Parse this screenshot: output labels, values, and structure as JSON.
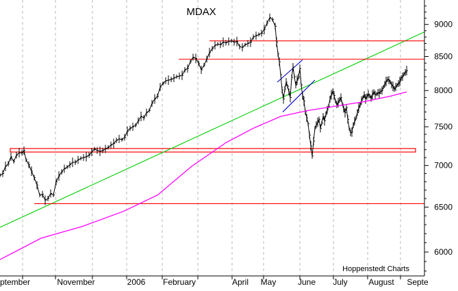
{
  "chart_data": {
    "type": "line",
    "title": "MDAX",
    "credit": "Hoppenstedt Charts",
    "ylim": [
      5750,
      9400
    ],
    "log_scale": true,
    "grid": "vertical-dashed",
    "x_tick_labels": [
      "ptember",
      "November",
      "2006",
      "February",
      "April",
      "May",
      "June",
      "July",
      "August",
      "Septe"
    ],
    "y_tick_labels": [
      6000,
      6500,
      7000,
      7500,
      8000,
      8500,
      9000
    ],
    "series": [
      {
        "kind": "price-bars",
        "color": "#000000",
        "points": [
          [
            0,
            6880
          ],
          [
            4,
            6900
          ],
          [
            8,
            6990
          ],
          [
            12,
            7020
          ],
          [
            16,
            7110
          ],
          [
            20,
            7050
          ],
          [
            24,
            7130
          ],
          [
            28,
            7160
          ],
          [
            32,
            7160
          ],
          [
            35,
            7190
          ],
          [
            38,
            7070
          ],
          [
            42,
            7010
          ],
          [
            46,
            6930
          ],
          [
            50,
            6850
          ],
          [
            54,
            6760
          ],
          [
            58,
            6640
          ],
          [
            62,
            6650
          ],
          [
            66,
            6580
          ],
          [
            70,
            6600
          ],
          [
            74,
            6660
          ],
          [
            78,
            6640
          ],
          [
            82,
            6800
          ],
          [
            86,
            6870
          ],
          [
            90,
            6920
          ],
          [
            94,
            6960
          ],
          [
            98,
            6980
          ],
          [
            102,
            7010
          ],
          [
            106,
            7040
          ],
          [
            110,
            7040
          ],
          [
            114,
            7070
          ],
          [
            118,
            7090
          ],
          [
            122,
            7100
          ],
          [
            126,
            7110
          ],
          [
            130,
            7130
          ],
          [
            134,
            7170
          ],
          [
            138,
            7210
          ],
          [
            142,
            7190
          ],
          [
            146,
            7180
          ],
          [
            150,
            7190
          ],
          [
            154,
            7210
          ],
          [
            158,
            7230
          ],
          [
            162,
            7260
          ],
          [
            166,
            7280
          ],
          [
            170,
            7320
          ],
          [
            174,
            7340
          ],
          [
            178,
            7330
          ],
          [
            182,
            7360
          ],
          [
            186,
            7440
          ],
          [
            190,
            7480
          ],
          [
            194,
            7500
          ],
          [
            198,
            7520
          ],
          [
            202,
            7580
          ],
          [
            206,
            7640
          ],
          [
            210,
            7620
          ],
          [
            214,
            7690
          ],
          [
            218,
            7720
          ],
          [
            222,
            7820
          ],
          [
            226,
            7880
          ],
          [
            230,
            7920
          ],
          [
            234,
            8050
          ],
          [
            238,
            8100
          ],
          [
            242,
            8140
          ],
          [
            246,
            8150
          ],
          [
            250,
            8160
          ],
          [
            254,
            8180
          ],
          [
            258,
            8200
          ],
          [
            262,
            8210
          ],
          [
            266,
            8220
          ],
          [
            270,
            8300
          ],
          [
            274,
            8320
          ],
          [
            278,
            8420
          ],
          [
            282,
            8490
          ],
          [
            286,
            8470
          ],
          [
            290,
            8400
          ],
          [
            294,
            8300
          ],
          [
            298,
            8370
          ],
          [
            302,
            8460
          ],
          [
            306,
            8560
          ],
          [
            310,
            8620
          ],
          [
            314,
            8670
          ],
          [
            318,
            8690
          ],
          [
            322,
            8680
          ],
          [
            326,
            8720
          ],
          [
            330,
            8710
          ],
          [
            334,
            8730
          ],
          [
            338,
            8740
          ],
          [
            342,
            8720
          ],
          [
            346,
            8730
          ],
          [
            350,
            8650
          ],
          [
            354,
            8640
          ],
          [
            358,
            8680
          ],
          [
            362,
            8700
          ],
          [
            366,
            8720
          ],
          [
            370,
            8800
          ],
          [
            374,
            8820
          ],
          [
            378,
            8840
          ],
          [
            382,
            8860
          ],
          [
            386,
            8920
          ],
          [
            390,
            9020
          ],
          [
            394,
            9110
          ],
          [
            398,
            9080
          ],
          [
            402,
            8970
          ],
          [
            404,
            8720
          ],
          [
            406,
            8540
          ],
          [
            408,
            8420
          ],
          [
            410,
            8230
          ],
          [
            412,
            8010
          ],
          [
            414,
            7880
          ],
          [
            416,
            8020
          ],
          [
            418,
            8120
          ],
          [
            420,
            8060
          ],
          [
            422,
            7980
          ],
          [
            424,
            7900
          ],
          [
            426,
            8190
          ],
          [
            428,
            8340
          ],
          [
            430,
            8200
          ],
          [
            432,
            8080
          ],
          [
            434,
            8150
          ],
          [
            436,
            8200
          ],
          [
            438,
            8320
          ],
          [
            440,
            8080
          ],
          [
            442,
            7920
          ],
          [
            444,
            7850
          ],
          [
            446,
            7700
          ],
          [
            448,
            7620
          ],
          [
            450,
            7540
          ],
          [
            452,
            7390
          ],
          [
            454,
            7250
          ],
          [
            456,
            7120
          ],
          [
            458,
            7310
          ],
          [
            460,
            7480
          ],
          [
            462,
            7530
          ],
          [
            464,
            7560
          ],
          [
            466,
            7600
          ],
          [
            468,
            7480
          ],
          [
            470,
            7550
          ],
          [
            472,
            7640
          ],
          [
            474,
            7580
          ],
          [
            476,
            7670
          ],
          [
            478,
            7730
          ],
          [
            480,
            7780
          ],
          [
            482,
            7880
          ],
          [
            484,
            7940
          ],
          [
            486,
            7990
          ],
          [
            488,
            7930
          ],
          [
            490,
            7850
          ],
          [
            492,
            7800
          ],
          [
            494,
            7830
          ],
          [
            496,
            7870
          ],
          [
            498,
            7900
          ],
          [
            500,
            7810
          ],
          [
            502,
            7740
          ],
          [
            504,
            7690
          ],
          [
            506,
            7760
          ],
          [
            508,
            7600
          ],
          [
            510,
            7480
          ],
          [
            512,
            7420
          ],
          [
            514,
            7430
          ],
          [
            516,
            7520
          ],
          [
            518,
            7580
          ],
          [
            520,
            7620
          ],
          [
            522,
            7690
          ],
          [
            524,
            7760
          ],
          [
            526,
            7800
          ],
          [
            528,
            7860
          ],
          [
            530,
            7900
          ],
          [
            532,
            7940
          ],
          [
            534,
            7880
          ],
          [
            536,
            7920
          ],
          [
            538,
            7950
          ],
          [
            540,
            7920
          ],
          [
            542,
            7890
          ],
          [
            544,
            7940
          ],
          [
            546,
            7980
          ],
          [
            548,
            7940
          ],
          [
            550,
            7950
          ],
          [
            552,
            7970
          ],
          [
            554,
            7960
          ],
          [
            556,
            7990
          ],
          [
            558,
            8000
          ],
          [
            560,
            8050
          ],
          [
            562,
            8090
          ],
          [
            564,
            8130
          ],
          [
            566,
            8160
          ],
          [
            568,
            8150
          ],
          [
            570,
            8120
          ],
          [
            572,
            8080
          ],
          [
            574,
            8060
          ],
          [
            576,
            8020
          ],
          [
            578,
            8050
          ],
          [
            580,
            8080
          ],
          [
            582,
            8100
          ],
          [
            584,
            8130
          ],
          [
            586,
            8180
          ],
          [
            588,
            8200
          ],
          [
            590,
            8240
          ],
          [
            592,
            8260
          ],
          [
            594,
            8290
          ]
        ]
      },
      {
        "kind": "moving-average",
        "color": "#ff00ff",
        "points": [
          [
            0,
            5920
          ],
          [
            60,
            6150
          ],
          [
            120,
            6280
          ],
          [
            180,
            6450
          ],
          [
            230,
            6640
          ],
          [
            280,
            6990
          ],
          [
            330,
            7290
          ],
          [
            370,
            7480
          ],
          [
            410,
            7640
          ],
          [
            450,
            7720
          ],
          [
            490,
            7780
          ],
          [
            530,
            7840
          ],
          [
            570,
            7920
          ],
          [
            594,
            7980
          ]
        ]
      }
    ],
    "trend_lines": [
      {
        "color": "#00cc00",
        "points": [
          [
            0,
            6270
          ],
          [
            620,
            8880
          ]
        ]
      },
      {
        "color": "#ff0000",
        "points": [
          [
            261,
            8460
          ],
          [
            620,
            8460
          ]
        ]
      },
      {
        "color": "#ff0000",
        "points": [
          [
            306,
            8740
          ],
          [
            620,
            8740
          ]
        ]
      },
      {
        "color": "#ff0000",
        "points": [
          [
            50,
            6540
          ],
          [
            620,
            6540
          ]
        ]
      },
      {
        "color": "#0000cc",
        "points": [
          [
            405,
            8120
          ],
          [
            442,
            8450
          ]
        ]
      },
      {
        "color": "#0000cc",
        "points": [
          [
            413,
            7700
          ],
          [
            460,
            8150
          ]
        ]
      }
    ],
    "support_band": {
      "color": "#ff0000",
      "top": 7215,
      "bottom": 7170,
      "x_from": 15,
      "x_to": 607
    },
    "x_tick_positions": [
      33,
      81,
      135,
      185,
      237,
      289,
      339,
      385,
      438,
      487,
      537,
      585
    ],
    "x_label_positions": [
      {
        "label": "ptember",
        "x": 22
      },
      {
        "label": "November",
        "x": 111
      },
      {
        "label": "2006",
        "x": 199
      },
      {
        "label": "February",
        "x": 262
      },
      {
        "label": "April",
        "x": 351
      },
      {
        "label": "May",
        "x": 392
      },
      {
        "label": "June",
        "x": 448
      },
      {
        "label": "July",
        "x": 497
      },
      {
        "label": "August",
        "x": 557
      },
      {
        "label": "Septe",
        "x": 610
      }
    ]
  }
}
